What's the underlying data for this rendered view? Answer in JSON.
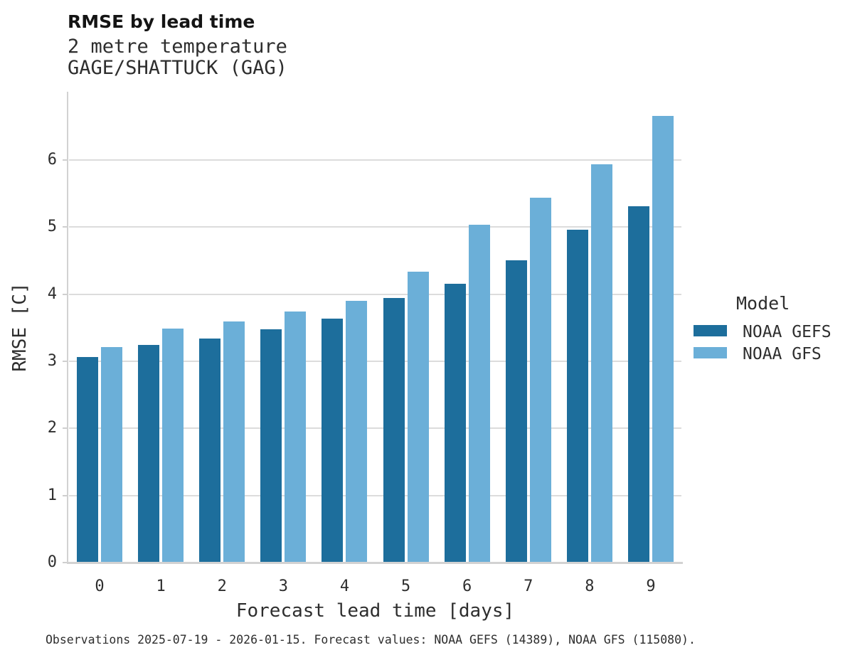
{
  "header": {
    "title": "RMSE by lead time",
    "subtitle_line1": "2 metre temperature",
    "subtitle_line2": "GAGE/SHATTUCK (GAG)"
  },
  "chart_data": {
    "type": "bar",
    "title": "RMSE by lead time",
    "subtitle": [
      "2 metre temperature",
      "GAGE/SHATTUCK (GAG)"
    ],
    "categories": [
      "0",
      "1",
      "2",
      "3",
      "4",
      "5",
      "6",
      "7",
      "8",
      "9"
    ],
    "series": [
      {
        "name": "NOAA GEFS",
        "color": "#1d6e9c",
        "values": [
          3.06,
          3.25,
          3.34,
          3.48,
          3.64,
          3.94,
          4.16,
          4.51,
          4.96,
          5.31
        ]
      },
      {
        "name": "NOAA GFS",
        "color": "#6bafd8",
        "values": [
          3.21,
          3.49,
          3.6,
          3.74,
          3.9,
          4.34,
          5.04,
          5.44,
          5.94,
          6.66
        ]
      }
    ],
    "xlabel": "Forecast lead time [days]",
    "ylabel": "RMSE [C]",
    "ylim": [
      0,
      7.02
    ],
    "yticks": [
      0,
      1,
      2,
      3,
      4,
      5,
      6
    ],
    "grid": "horizontal-major-only",
    "legend_position": "right"
  },
  "legend": {
    "title": "Model"
  },
  "footer": {
    "text": "Observations 2025-07-19 - 2026-01-15. Forecast values: NOAA GEFS (14389), NOAA GFS (115080)."
  },
  "colors": {
    "series_dark": "#1d6e9c",
    "series_light": "#6bafd8",
    "gridline": "#dcdcdc",
    "axis_line": "#d2d2d2",
    "text": "#2e2e2e",
    "title_text": "#141414",
    "background": "#ffffff"
  }
}
